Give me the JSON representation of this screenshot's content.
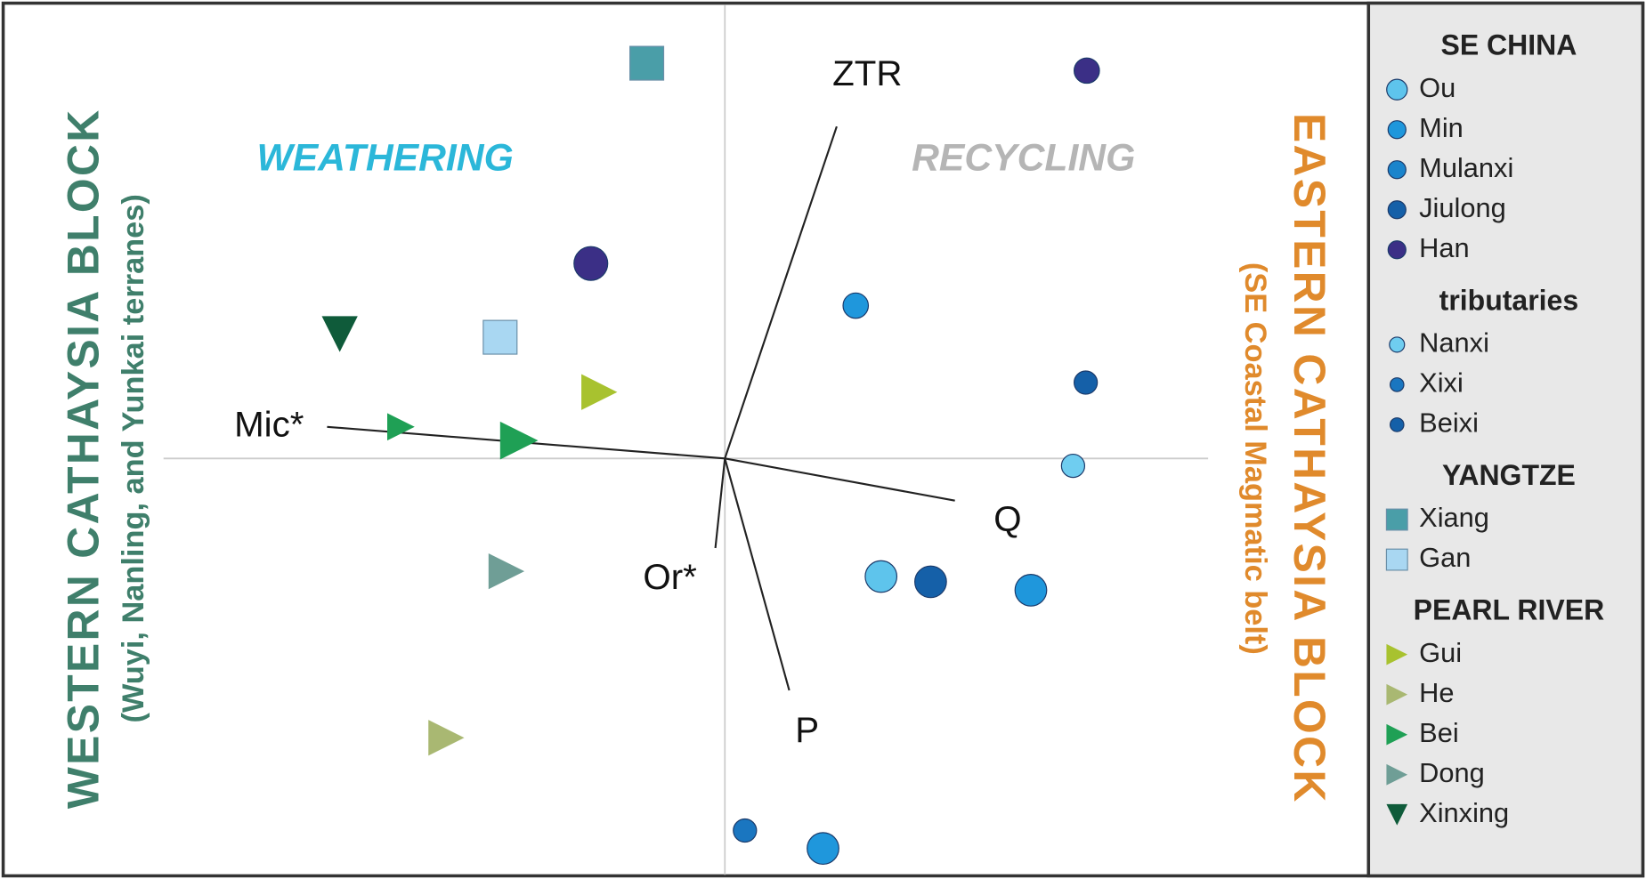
{
  "labels": {
    "west_block": "WESTERN CATHAYSIA BLOCK",
    "west_sub": "(Wuyi, Nanling, and Yunkai terranes)",
    "east_block": "EASTERN CATHAYSIA BLOCK",
    "east_sub": "(SE Coastal Magmatic belt)",
    "weathering": "WEATHERING",
    "recycling": "RECYCLING"
  },
  "vectors": [
    "ZTR",
    "Mic*",
    "Q",
    "P",
    "Or*"
  ],
  "legend": [
    {
      "heading": "SE CHINA",
      "items": [
        "Ou",
        "Min",
        "Mulanxi",
        "Jiulong",
        "Han"
      ]
    },
    {
      "heading": "tributaries",
      "items": [
        "Nanxi",
        "Xixi",
        "Beixi"
      ]
    },
    {
      "heading": "YANGTZE",
      "items": [
        "Xiang",
        "Gan"
      ]
    },
    {
      "heading": "PEARL RIVER",
      "items": [
        "Gui",
        "He",
        "Bei",
        "Dong",
        "Xinxing"
      ]
    }
  ]
}
